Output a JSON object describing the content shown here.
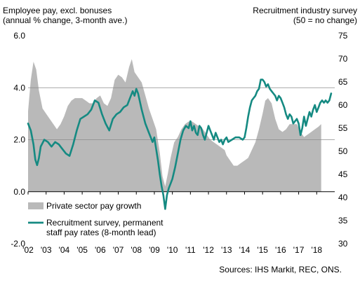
{
  "header": {
    "left_title_1": "Employee pay, excl. bonuses",
    "left_title_2": "(annual % change, 3-month ave.)",
    "right_title_1": "Recruitment industry survey",
    "right_title_2": "(50 = no change)"
  },
  "source": "Sources: IHS Markit, REC, ONS.",
  "colors": {
    "area": "#b9b9b9",
    "line": "#158a82",
    "grid": "#8c8c8c",
    "axis": "#000000"
  },
  "chart_data": {
    "type": "area",
    "x_tick_labels": [
      "'02",
      "'03",
      "'04",
      "'05",
      "'06",
      "'07",
      "'08",
      "'09",
      "'10",
      "'11",
      "'12",
      "'13",
      "'14",
      "'15",
      "'16",
      "'17",
      "'18"
    ],
    "x_ticks": [
      2002,
      2003,
      2004,
      2005,
      2006,
      2007,
      2008,
      2009,
      2010,
      2011,
      2012,
      2013,
      2014,
      2015,
      2016,
      2017,
      2018
    ],
    "xlim": [
      2002,
      2019
    ],
    "y_left": {
      "lim": [
        -2.0,
        6.0
      ],
      "ticks": [
        -2.0,
        0.0,
        2.0,
        4.0,
        6.0
      ],
      "tick_labels": [
        "-2.0",
        "0.0",
        "2.0",
        "4.0",
        "6.0"
      ],
      "gridlines": [
        2.0,
        4.0
      ]
    },
    "y_right": {
      "lim": [
        30,
        75
      ],
      "ticks": [
        30,
        35,
        40,
        45,
        50,
        55,
        60,
        65,
        70,
        75
      ],
      "tick_labels": [
        "30",
        "35",
        "40",
        "45",
        "50",
        "55",
        "60",
        "65",
        "70",
        "75"
      ]
    },
    "series": [
      {
        "name": "Private sector pay growth",
        "kind": "area",
        "axis": "left",
        "points": [
          [
            2002.0,
            3.1
          ],
          [
            2002.15,
            4.3
          ],
          [
            2002.3,
            5.0
          ],
          [
            2002.45,
            4.7
          ],
          [
            2002.6,
            3.9
          ],
          [
            2002.8,
            3.2
          ],
          [
            2003.0,
            3.0
          ],
          [
            2003.2,
            2.8
          ],
          [
            2003.4,
            2.6
          ],
          [
            2003.6,
            2.4
          ],
          [
            2003.8,
            2.6
          ],
          [
            2004.0,
            2.9
          ],
          [
            2004.2,
            3.3
          ],
          [
            2004.4,
            3.5
          ],
          [
            2004.6,
            3.6
          ],
          [
            2004.8,
            3.6
          ],
          [
            2005.0,
            3.6
          ],
          [
            2005.2,
            3.5
          ],
          [
            2005.4,
            3.4
          ],
          [
            2005.6,
            3.4
          ],
          [
            2005.8,
            3.6
          ],
          [
            2006.0,
            3.7
          ],
          [
            2006.2,
            3.4
          ],
          [
            2006.4,
            3.3
          ],
          [
            2006.6,
            3.6
          ],
          [
            2006.8,
            4.3
          ],
          [
            2007.0,
            4.5
          ],
          [
            2007.2,
            4.4
          ],
          [
            2007.4,
            4.2
          ],
          [
            2007.6,
            4.8
          ],
          [
            2007.75,
            5.1
          ],
          [
            2007.9,
            4.6
          ],
          [
            2008.1,
            4.4
          ],
          [
            2008.3,
            4.2
          ],
          [
            2008.5,
            3.7
          ],
          [
            2008.7,
            3.2
          ],
          [
            2008.9,
            2.8
          ],
          [
            2009.1,
            2.4
          ],
          [
            2009.3,
            1.5
          ],
          [
            2009.45,
            0.6
          ],
          [
            2009.6,
            0.2
          ],
          [
            2009.75,
            0.7
          ],
          [
            2009.9,
            1.3
          ],
          [
            2010.1,
            1.9
          ],
          [
            2010.3,
            2.1
          ],
          [
            2010.5,
            2.4
          ],
          [
            2010.7,
            2.6
          ],
          [
            2010.9,
            2.7
          ],
          [
            2011.1,
            2.7
          ],
          [
            2011.3,
            2.6
          ],
          [
            2011.5,
            2.5
          ],
          [
            2011.7,
            2.4
          ],
          [
            2011.9,
            2.2
          ],
          [
            2012.1,
            2.0
          ],
          [
            2012.3,
            1.9
          ],
          [
            2012.5,
            1.8
          ],
          [
            2012.7,
            1.7
          ],
          [
            2012.9,
            1.6
          ],
          [
            2013.0,
            1.4
          ],
          [
            2013.2,
            1.2
          ],
          [
            2013.4,
            1.0
          ],
          [
            2013.6,
            1.0
          ],
          [
            2013.8,
            1.1
          ],
          [
            2014.0,
            1.2
          ],
          [
            2014.2,
            1.3
          ],
          [
            2014.4,
            1.6
          ],
          [
            2014.6,
            1.9
          ],
          [
            2014.8,
            2.4
          ],
          [
            2015.0,
            3.0
          ],
          [
            2015.15,
            3.5
          ],
          [
            2015.3,
            3.6
          ],
          [
            2015.5,
            3.4
          ],
          [
            2015.7,
            2.8
          ],
          [
            2015.9,
            2.4
          ],
          [
            2016.1,
            2.3
          ],
          [
            2016.3,
            2.4
          ],
          [
            2016.5,
            2.6
          ],
          [
            2016.7,
            2.6
          ],
          [
            2016.9,
            2.6
          ],
          [
            2017.1,
            2.3
          ],
          [
            2017.3,
            2.1
          ],
          [
            2017.5,
            2.2
          ],
          [
            2017.7,
            2.3
          ],
          [
            2017.9,
            2.4
          ],
          [
            2018.1,
            2.5
          ],
          [
            2018.25,
            2.6
          ]
        ]
      },
      {
        "name": "Recruitment survey, permanent staff pay rates (8-month lead)",
        "kind": "line",
        "axis": "right",
        "points": [
          [
            2002.0,
            56.0
          ],
          [
            2002.15,
            54.5
          ],
          [
            2002.3,
            51.5
          ],
          [
            2002.4,
            48.2
          ],
          [
            2002.5,
            47.0
          ],
          [
            2002.6,
            48.5
          ],
          [
            2002.7,
            51.0
          ],
          [
            2002.9,
            52.5
          ],
          [
            2003.1,
            52.0
          ],
          [
            2003.3,
            51.0
          ],
          [
            2003.5,
            52.0
          ],
          [
            2003.7,
            51.5
          ],
          [
            2003.9,
            50.5
          ],
          [
            2004.1,
            49.5
          ],
          [
            2004.3,
            49.0
          ],
          [
            2004.5,
            51.5
          ],
          [
            2004.7,
            54.5
          ],
          [
            2004.9,
            57.0
          ],
          [
            2005.1,
            57.5
          ],
          [
            2005.3,
            58.0
          ],
          [
            2005.5,
            59.0
          ],
          [
            2005.7,
            61.0
          ],
          [
            2005.9,
            60.5
          ],
          [
            2006.1,
            58.0
          ],
          [
            2006.3,
            56.0
          ],
          [
            2006.5,
            54.5
          ],
          [
            2006.7,
            57.0
          ],
          [
            2006.9,
            58.0
          ],
          [
            2007.1,
            58.5
          ],
          [
            2007.3,
            59.5
          ],
          [
            2007.5,
            60.0
          ],
          [
            2007.7,
            62.0
          ],
          [
            2007.8,
            63.0
          ],
          [
            2007.9,
            62.0
          ],
          [
            2008.0,
            63.5
          ],
          [
            2008.1,
            62.5
          ],
          [
            2008.3,
            59.0
          ],
          [
            2008.5,
            56.0
          ],
          [
            2008.7,
            54.0
          ],
          [
            2008.8,
            53.0
          ],
          [
            2008.9,
            52.0
          ],
          [
            2009.0,
            53.0
          ],
          [
            2009.1,
            50.5
          ],
          [
            2009.2,
            48.0
          ],
          [
            2009.3,
            45.0
          ],
          [
            2009.4,
            42.5
          ],
          [
            2009.5,
            40.5
          ],
          [
            2009.6,
            37.5
          ],
          [
            2009.7,
            40.5
          ],
          [
            2009.8,
            42.0
          ],
          [
            2009.9,
            43.0
          ],
          [
            2010.0,
            44.0
          ],
          [
            2010.15,
            46.5
          ],
          [
            2010.3,
            49.5
          ],
          [
            2010.45,
            52.5
          ],
          [
            2010.6,
            54.5
          ],
          [
            2010.75,
            55.5
          ],
          [
            2010.9,
            55.0
          ],
          [
            2011.0,
            56.5
          ],
          [
            2011.1,
            54.5
          ],
          [
            2011.2,
            55.5
          ],
          [
            2011.3,
            54.0
          ],
          [
            2011.4,
            53.5
          ],
          [
            2011.5,
            55.5
          ],
          [
            2011.6,
            55.0
          ],
          [
            2011.7,
            53.5
          ],
          [
            2011.8,
            52.5
          ],
          [
            2011.9,
            54.0
          ],
          [
            2012.0,
            55.5
          ],
          [
            2012.1,
            54.5
          ],
          [
            2012.2,
            53.5
          ],
          [
            2012.3,
            52.5
          ],
          [
            2012.4,
            54.0
          ],
          [
            2012.5,
            53.0
          ],
          [
            2012.6,
            52.0
          ],
          [
            2012.7,
            52.5
          ],
          [
            2012.8,
            51.5
          ],
          [
            2012.9,
            52.5
          ],
          [
            2013.0,
            53.0
          ],
          [
            2013.1,
            52.0
          ],
          [
            2013.3,
            52.5
          ],
          [
            2013.5,
            53.0
          ],
          [
            2013.7,
            53.0
          ],
          [
            2013.9,
            52.5
          ],
          [
            2014.0,
            53.0
          ],
          [
            2014.1,
            55.0
          ],
          [
            2014.2,
            57.5
          ],
          [
            2014.3,
            59.5
          ],
          [
            2014.4,
            61.0
          ],
          [
            2014.5,
            61.5
          ],
          [
            2014.6,
            62.0
          ],
          [
            2014.7,
            63.0
          ],
          [
            2014.8,
            63.5
          ],
          [
            2014.9,
            65.5
          ],
          [
            2015.0,
            65.5
          ],
          [
            2015.1,
            65.0
          ],
          [
            2015.2,
            64.0
          ],
          [
            2015.3,
            64.5
          ],
          [
            2015.4,
            63.5
          ],
          [
            2015.5,
            63.0
          ],
          [
            2015.6,
            62.5
          ],
          [
            2015.7,
            62.0
          ],
          [
            2015.8,
            61.0
          ],
          [
            2015.9,
            62.0
          ],
          [
            2016.0,
            61.5
          ],
          [
            2016.1,
            60.5
          ],
          [
            2016.2,
            59.5
          ],
          [
            2016.3,
            58.0
          ],
          [
            2016.4,
            57.0
          ],
          [
            2016.5,
            58.0
          ],
          [
            2016.6,
            57.5
          ],
          [
            2016.7,
            56.0
          ],
          [
            2016.8,
            56.5
          ],
          [
            2016.9,
            57.0
          ],
          [
            2017.0,
            56.0
          ],
          [
            2017.1,
            53.5
          ],
          [
            2017.2,
            55.0
          ],
          [
            2017.3,
            57.5
          ],
          [
            2017.4,
            55.5
          ],
          [
            2017.5,
            57.0
          ],
          [
            2017.6,
            58.5
          ],
          [
            2017.7,
            57.5
          ],
          [
            2017.8,
            59.0
          ],
          [
            2017.9,
            60.0
          ],
          [
            2018.0,
            58.5
          ],
          [
            2018.1,
            59.5
          ],
          [
            2018.2,
            60.5
          ],
          [
            2018.3,
            61.0
          ],
          [
            2018.4,
            60.5
          ],
          [
            2018.5,
            61.0
          ],
          [
            2018.6,
            60.5
          ],
          [
            2018.7,
            61.0
          ],
          [
            2018.8,
            62.5
          ]
        ]
      }
    ],
    "legend": {
      "placement": "bottom-left",
      "entries": [
        {
          "label": "Private sector pay growth",
          "kind": "area"
        },
        {
          "label_lines": [
            "Recruitment survey, permanent",
            "staff pay rates (8-month lead)"
          ],
          "kind": "line"
        }
      ]
    }
  }
}
